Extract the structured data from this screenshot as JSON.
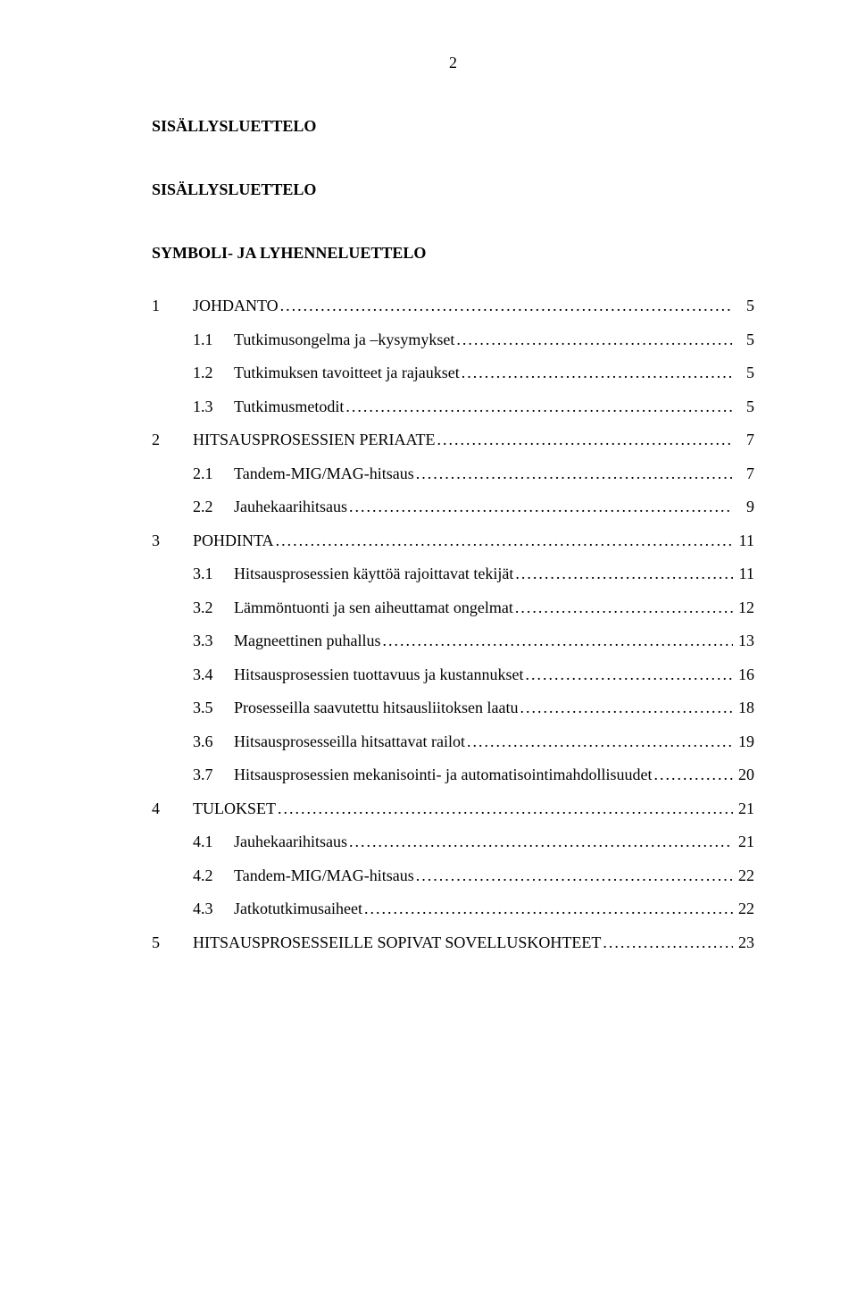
{
  "page_number": "2",
  "headings": {
    "h1": "SISÄLLYSLUETTELO",
    "h2": "SISÄLLYSLUETTELO",
    "h3": "SYMBOLI- JA LYHENNELUETTELO"
  },
  "toc": [
    {
      "num": "1",
      "title": "JOHDANTO",
      "page": "5",
      "level": 1
    },
    {
      "num": "1.1",
      "title": "Tutkimusongelma ja –kysymykset",
      "page": "5",
      "level": 2
    },
    {
      "num": "1.2",
      "title": "Tutkimuksen tavoitteet ja rajaukset",
      "page": "5",
      "level": 2
    },
    {
      "num": "1.3",
      "title": "Tutkimusmetodit",
      "page": "5",
      "level": 2
    },
    {
      "num": "2",
      "title": "HITSAUSPROSESSIEN PERIAATE",
      "page": "7",
      "level": 1
    },
    {
      "num": "2.1",
      "title": "Tandem-MIG/MAG-hitsaus",
      "page": "7",
      "level": 2
    },
    {
      "num": "2.2",
      "title": "Jauhekaarihitsaus",
      "page": "9",
      "level": 2
    },
    {
      "num": "3",
      "title": "POHDINTA",
      "page": "11",
      "level": 1
    },
    {
      "num": "3.1",
      "title": "Hitsausprosessien käyttöä rajoittavat tekijät",
      "page": "11",
      "level": 2
    },
    {
      "num": "3.2",
      "title": "Lämmöntuonti ja sen aiheuttamat ongelmat",
      "page": "12",
      "level": 2
    },
    {
      "num": "3.3",
      "title": "Magneettinen puhallus",
      "page": "13",
      "level": 2
    },
    {
      "num": "3.4",
      "title": "Hitsausprosessien tuottavuus ja kustannukset",
      "page": "16",
      "level": 2
    },
    {
      "num": "3.5",
      "title": "Prosesseilla saavutettu hitsausliitoksen laatu",
      "page": "18",
      "level": 2
    },
    {
      "num": "3.6",
      "title": "Hitsausprosesseilla hitsattavat railot",
      "page": "19",
      "level": 2
    },
    {
      "num": "3.7",
      "title": "Hitsausprosessien mekanisointi- ja automatisointimahdollisuudet",
      "page": "20",
      "level": 2
    },
    {
      "num": "4",
      "title": "TULOKSET",
      "page": "21",
      "level": 1
    },
    {
      "num": "4.1",
      "title": "Jauhekaarihitsaus",
      "page": "21",
      "level": 2
    },
    {
      "num": "4.2",
      "title": "Tandem-MIG/MAG-hitsaus",
      "page": "22",
      "level": 2
    },
    {
      "num": "4.3",
      "title": "Jatkotutkimusaiheet",
      "page": "22",
      "level": 2
    },
    {
      "num": "5",
      "title": "HITSAUSPROSESSEILLE SOPIVAT SOVELLUSKOHTEET",
      "page": "23",
      "level": 1
    }
  ]
}
